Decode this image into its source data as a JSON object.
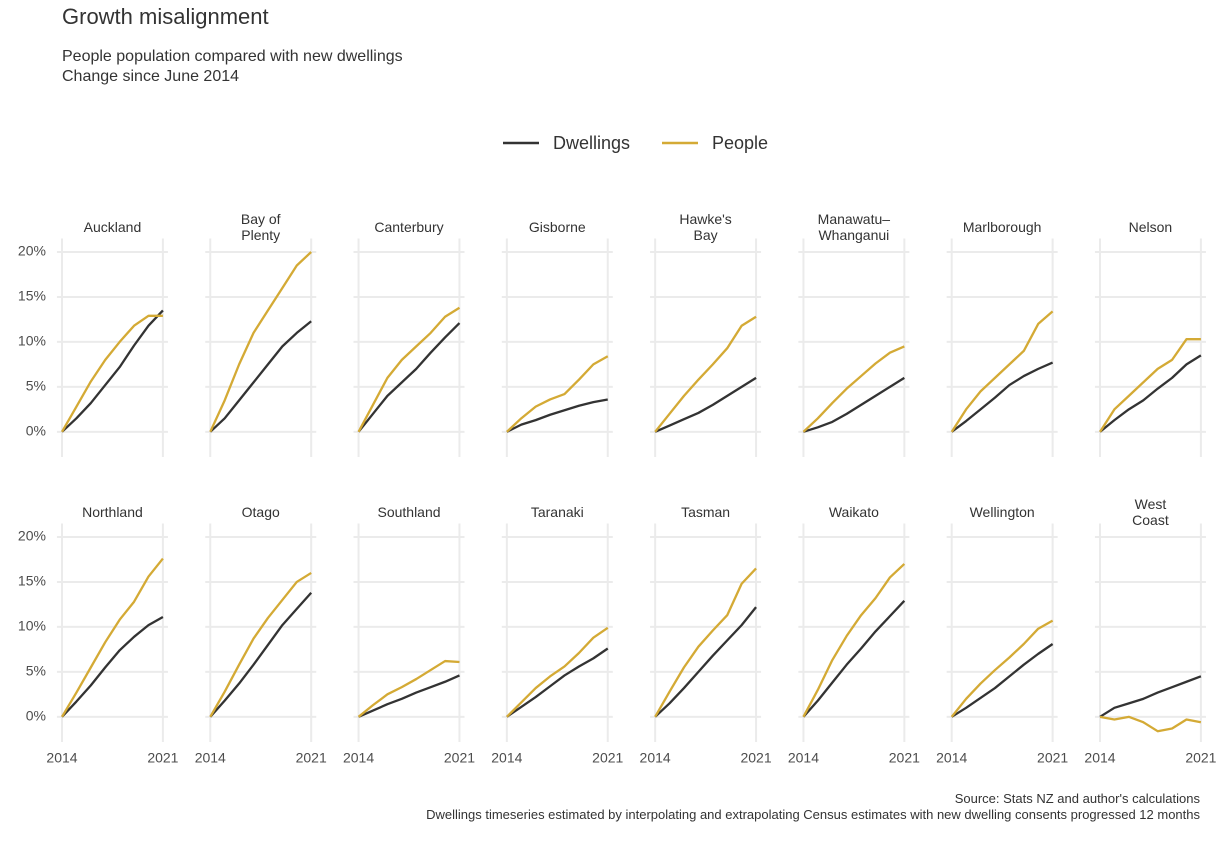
{
  "chart_data": {
    "type": "line",
    "title": "Growth misalignment",
    "subtitle": "People population compared with new dwellings\nChange since June 2014",
    "caption": "Source: Stats NZ and author's calculations\nDwellings timeseries estimated by interpolating and extrapolating Census estimates with new dwelling consents progressed 12 months",
    "series": [
      {
        "name": "Dwellings",
        "color": "#333333"
      },
      {
        "name": "People",
        "color": "#d4aa35"
      }
    ],
    "x": [
      2014,
      2015,
      2016,
      2017,
      2018,
      2019,
      2020,
      2021
    ],
    "xlim": [
      2013.65,
      2021.35
    ],
    "xticks": [
      2014,
      2021
    ],
    "ylim": [
      -2.8,
      21.5
    ],
    "yticks": [
      {
        "value": 0,
        "label": "0%"
      },
      {
        "value": 5,
        "label": "5%"
      },
      {
        "value": 10,
        "label": "10%"
      },
      {
        "value": 15,
        "label": "15%"
      },
      {
        "value": 20,
        "label": "20%"
      }
    ],
    "grid": true,
    "panels": [
      {
        "title": "Auckland",
        "values": [
          [
            0,
            1.5,
            3.2,
            5.2,
            7.2,
            9.6,
            11.8,
            13.5
          ],
          [
            0,
            2.8,
            5.6,
            8.0,
            10.0,
            11.8,
            12.9,
            12.9
          ]
        ]
      },
      {
        "title": "Bay of\nPlenty",
        "values": [
          [
            0,
            1.5,
            3.5,
            5.5,
            7.5,
            9.5,
            11,
            12.3
          ],
          [
            0,
            3.5,
            7.5,
            11,
            13.5,
            16,
            18.5,
            20
          ]
        ]
      },
      {
        "title": "Canterbury",
        "values": [
          [
            0,
            2,
            4,
            5.5,
            7,
            8.8,
            10.5,
            12.1
          ],
          [
            0,
            3,
            6,
            8,
            9.5,
            11,
            12.8,
            13.8
          ]
        ]
      },
      {
        "title": "Gisborne",
        "values": [
          [
            0,
            0.8,
            1.3,
            1.9,
            2.4,
            2.9,
            3.3,
            3.6
          ],
          [
            0,
            1.5,
            2.8,
            3.6,
            4.2,
            5.8,
            7.5,
            8.4
          ]
        ]
      },
      {
        "title": "Hawke's\nBay",
        "values": [
          [
            0,
            0.7,
            1.4,
            2.1,
            3,
            4,
            5,
            6
          ],
          [
            0,
            2,
            4,
            5.8,
            7.5,
            9.3,
            11.8,
            12.8
          ]
        ]
      },
      {
        "title": "Manawatu–\nWhanganui",
        "values": [
          [
            0,
            0.5,
            1.1,
            2,
            3,
            4,
            5,
            6
          ],
          [
            0,
            1.5,
            3.2,
            4.8,
            6.2,
            7.6,
            8.8,
            9.5
          ]
        ]
      },
      {
        "title": "Marlborough",
        "values": [
          [
            0,
            1.2,
            2.5,
            3.8,
            5.2,
            6.2,
            7,
            7.7
          ],
          [
            0,
            2.5,
            4.5,
            6,
            7.5,
            9,
            12,
            13.4
          ]
        ]
      },
      {
        "title": "Nelson",
        "values": [
          [
            0,
            1.3,
            2.5,
            3.5,
            4.8,
            6,
            7.5,
            8.5
          ],
          [
            0,
            2.5,
            4,
            5.5,
            7,
            8,
            10.3,
            10.3
          ]
        ]
      },
      {
        "title": "Northland",
        "values": [
          [
            0,
            1.7,
            3.5,
            5.5,
            7.4,
            8.9,
            10.2,
            11.1
          ],
          [
            0,
            2.7,
            5.5,
            8.3,
            10.8,
            12.8,
            15.6,
            17.6
          ]
        ]
      },
      {
        "title": "Otago",
        "values": [
          [
            0,
            1.8,
            3.7,
            5.8,
            8,
            10.2,
            12,
            13.8
          ],
          [
            0,
            2.8,
            5.8,
            8.7,
            11,
            13,
            15,
            16
          ]
        ]
      },
      {
        "title": "Southland",
        "values": [
          [
            0,
            0.7,
            1.4,
            2,
            2.7,
            3.3,
            3.9,
            4.6
          ],
          [
            0,
            1.3,
            2.5,
            3.3,
            4.2,
            5.2,
            6.2,
            6.1
          ]
        ]
      },
      {
        "title": "Taranaki",
        "values": [
          [
            0,
            1.1,
            2.2,
            3.4,
            4.6,
            5.6,
            6.5,
            7.6
          ],
          [
            0,
            1.6,
            3.2,
            4.5,
            5.6,
            7.1,
            8.8,
            9.9
          ]
        ]
      },
      {
        "title": "Tasman",
        "values": [
          [
            0,
            1.5,
            3.2,
            5,
            6.8,
            8.5,
            10.2,
            12.2
          ],
          [
            0,
            2.8,
            5.5,
            7.8,
            9.6,
            11.3,
            14.8,
            16.5
          ]
        ]
      },
      {
        "title": "Waikato",
        "values": [
          [
            0,
            1.8,
            3.8,
            5.8,
            7.6,
            9.5,
            11.2,
            12.9
          ],
          [
            0,
            3,
            6.3,
            9,
            11.3,
            13.2,
            15.5,
            17
          ]
        ]
      },
      {
        "title": "Wellington",
        "values": [
          [
            0,
            1,
            2.1,
            3.2,
            4.5,
            5.8,
            7,
            8.1
          ],
          [
            0,
            2,
            3.7,
            5.2,
            6.6,
            8.1,
            9.8,
            10.7
          ]
        ]
      },
      {
        "title": "West\nCoast",
        "values": [
          [
            0,
            1,
            1.5,
            2,
            2.7,
            3.3,
            3.9,
            4.5
          ],
          [
            0,
            -0.3,
            0,
            -0.6,
            -1.6,
            -1.3,
            -0.3,
            -0.6
          ]
        ]
      }
    ]
  }
}
